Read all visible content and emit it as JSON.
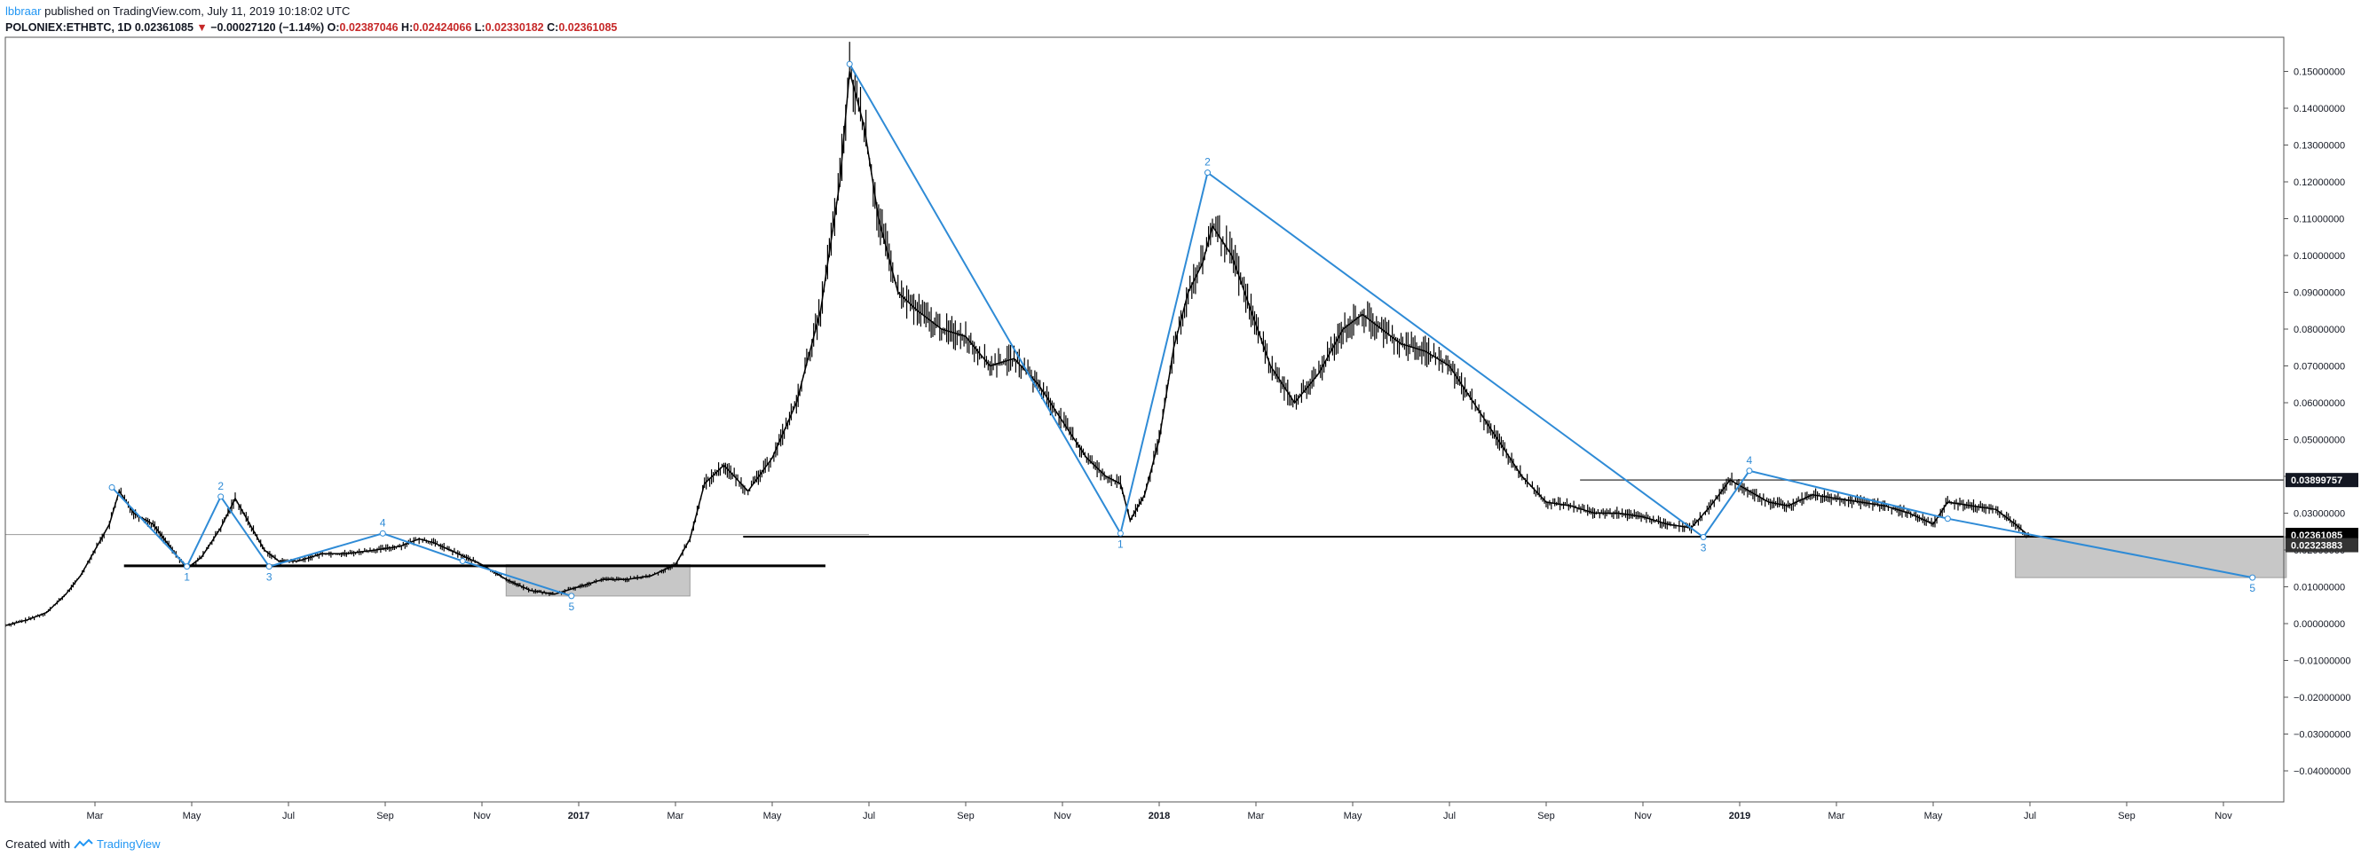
{
  "header": {
    "author": "lbbraar",
    "published": "published on TradingView.com, July 11, 2019 10:18:02 UTC",
    "symbol": "POLONIEX:ETHBTC, 1D",
    "last": "0.02361085",
    "change": "−0.00027120 (−1.14%)",
    "o_label": "O:",
    "o_value": "0.02387046",
    "h_label": "H:",
    "h_value": "0.02424066",
    "l_label": "L:",
    "l_value": "0.02330182",
    "c_label": "C:",
    "c_value": "0.02361085"
  },
  "footer": {
    "created": "Created with",
    "brand": "TradingView"
  },
  "chart_data": {
    "type": "line",
    "y_ticks": [
      "0.15000000",
      "0.14000000",
      "0.13000000",
      "0.12000000",
      "0.11000000",
      "0.10000000",
      "0.09000000",
      "0.08000000",
      "0.07000000",
      "0.06000000",
      "0.05000000",
      "0.04000000",
      "0.03000000",
      "0.02000000",
      "0.01000000",
      "0.00000000",
      "−0.01000000",
      "−0.02000000",
      "−0.03000000",
      "−0.04000000"
    ],
    "ylim": [
      -0.045,
      0.155
    ],
    "x_ticks": [
      {
        "t": 0.0,
        "label": "Mar"
      },
      {
        "t": 2.0,
        "label": "May"
      },
      {
        "t": 4.0,
        "label": "Jul"
      },
      {
        "t": 6.0,
        "label": "Sep"
      },
      {
        "t": 8.0,
        "label": "Nov"
      },
      {
        "t": 10.0,
        "label": "2017",
        "bold": true
      },
      {
        "t": 12.0,
        "label": "Mar"
      },
      {
        "t": 14.0,
        "label": "May"
      },
      {
        "t": 16.0,
        "label": "Jul"
      },
      {
        "t": 18.0,
        "label": "Sep"
      },
      {
        "t": 20.0,
        "label": "Nov"
      },
      {
        "t": 22.0,
        "label": "2018",
        "bold": true
      },
      {
        "t": 24.0,
        "label": "Mar"
      },
      {
        "t": 26.0,
        "label": "May"
      },
      {
        "t": 28.0,
        "label": "Jul"
      },
      {
        "t": 30.0,
        "label": "Sep"
      },
      {
        "t": 32.0,
        "label": "Nov"
      },
      {
        "t": 34.0,
        "label": "2019",
        "bold": true
      },
      {
        "t": 36.0,
        "label": "Mar"
      },
      {
        "t": 38.0,
        "label": "May"
      },
      {
        "t": 40.0,
        "label": "Jul"
      },
      {
        "t": 42.0,
        "label": "Sep"
      },
      {
        "t": 44.0,
        "label": "Nov"
      }
    ],
    "xlim": [
      -1.85,
      45.3
    ],
    "price_series": [
      [
        -1.85,
        -0.0005
      ],
      [
        -1.4,
        0.001
      ],
      [
        -1.0,
        0.003
      ],
      [
        -0.6,
        0.008
      ],
      [
        -0.3,
        0.013
      ],
      [
        0.0,
        0.02
      ],
      [
        0.3,
        0.027
      ],
      [
        0.5,
        0.036
      ],
      [
        0.8,
        0.03
      ],
      [
        1.2,
        0.027
      ],
      [
        1.6,
        0.02
      ],
      [
        1.9,
        0.015
      ],
      [
        2.2,
        0.018
      ],
      [
        2.6,
        0.026
      ],
      [
        2.9,
        0.034
      ],
      [
        3.2,
        0.027
      ],
      [
        3.5,
        0.02
      ],
      [
        3.8,
        0.017
      ],
      [
        4.2,
        0.017
      ],
      [
        4.7,
        0.019
      ],
      [
        5.2,
        0.019
      ],
      [
        5.8,
        0.02
      ],
      [
        6.3,
        0.021
      ],
      [
        6.7,
        0.023
      ],
      [
        7.0,
        0.022
      ],
      [
        7.5,
        0.019
      ],
      [
        8.0,
        0.016
      ],
      [
        8.5,
        0.012
      ],
      [
        9.0,
        0.009
      ],
      [
        9.5,
        0.008
      ],
      [
        10.0,
        0.01
      ],
      [
        10.5,
        0.012
      ],
      [
        11.0,
        0.012
      ],
      [
        11.5,
        0.013
      ],
      [
        12.0,
        0.016
      ],
      [
        12.3,
        0.023
      ],
      [
        12.6,
        0.038
      ],
      [
        13.0,
        0.043
      ],
      [
        13.5,
        0.036
      ],
      [
        14.0,
        0.045
      ],
      [
        14.5,
        0.06
      ],
      [
        15.0,
        0.085
      ],
      [
        15.4,
        0.12
      ],
      [
        15.6,
        0.15
      ],
      [
        15.9,
        0.135
      ],
      [
        16.2,
        0.11
      ],
      [
        16.6,
        0.09
      ],
      [
        17.0,
        0.085
      ],
      [
        17.5,
        0.08
      ],
      [
        18.0,
        0.078
      ],
      [
        18.5,
        0.07
      ],
      [
        19.0,
        0.072
      ],
      [
        19.5,
        0.065
      ],
      [
        20.0,
        0.055
      ],
      [
        20.5,
        0.045
      ],
      [
        20.9,
        0.04
      ],
      [
        21.2,
        0.038
      ],
      [
        21.4,
        0.028
      ],
      [
        21.7,
        0.035
      ],
      [
        22.0,
        0.05
      ],
      [
        22.3,
        0.075
      ],
      [
        22.6,
        0.09
      ],
      [
        22.9,
        0.098
      ],
      [
        23.1,
        0.108
      ],
      [
        23.5,
        0.1
      ],
      [
        23.9,
        0.085
      ],
      [
        24.3,
        0.07
      ],
      [
        24.8,
        0.06
      ],
      [
        25.3,
        0.068
      ],
      [
        25.8,
        0.08
      ],
      [
        26.2,
        0.084
      ],
      [
        26.6,
        0.08
      ],
      [
        27.0,
        0.076
      ],
      [
        27.5,
        0.074
      ],
      [
        28.0,
        0.07
      ],
      [
        28.5,
        0.06
      ],
      [
        29.0,
        0.05
      ],
      [
        29.5,
        0.04
      ],
      [
        30.0,
        0.033
      ],
      [
        30.5,
        0.032
      ],
      [
        31.0,
        0.03
      ],
      [
        31.5,
        0.03
      ],
      [
        32.0,
        0.029
      ],
      [
        32.5,
        0.027
      ],
      [
        33.0,
        0.026
      ],
      [
        33.4,
        0.032
      ],
      [
        33.8,
        0.039
      ],
      [
        34.2,
        0.036
      ],
      [
        34.6,
        0.033
      ],
      [
        35.0,
        0.032
      ],
      [
        35.5,
        0.035
      ],
      [
        36.0,
        0.034
      ],
      [
        36.5,
        0.033
      ],
      [
        37.0,
        0.032
      ],
      [
        37.5,
        0.03
      ],
      [
        38.0,
        0.027
      ],
      [
        38.3,
        0.033
      ],
      [
        38.8,
        0.032
      ],
      [
        39.3,
        0.031
      ],
      [
        39.7,
        0.027
      ],
      [
        40.0,
        0.0236
      ]
    ],
    "wave_lines": [
      [
        [
          0.35,
          0.037
        ],
        [
          1.9,
          0.0155
        ],
        [
          2.6,
          0.0345
        ],
        [
          3.6,
          0.0155
        ],
        [
          5.95,
          0.0245
        ],
        [
          7.6,
          0.017
        ],
        [
          9.85,
          0.0075
        ]
      ],
      [
        [
          15.6,
          0.152
        ],
        [
          21.2,
          0.0245
        ],
        [
          23.0,
          0.1225
        ],
        [
          33.25,
          0.0235
        ],
        [
          34.2,
          0.0415
        ],
        [
          38.3,
          0.0285
        ],
        [
          44.6,
          0.0125
        ]
      ]
    ],
    "wave_labels": [
      {
        "t": 1.9,
        "v": 0.0155,
        "label": "1",
        "pos": "below"
      },
      {
        "t": 2.6,
        "v": 0.0345,
        "label": "2",
        "pos": "above"
      },
      {
        "t": 3.6,
        "v": 0.0155,
        "label": "3",
        "pos": "below"
      },
      {
        "t": 5.95,
        "v": 0.0245,
        "label": "4",
        "pos": "above"
      },
      {
        "t": 9.85,
        "v": 0.0075,
        "label": "5",
        "pos": "below"
      },
      {
        "t": 21.2,
        "v": 0.0245,
        "label": "1",
        "pos": "below"
      },
      {
        "t": 23.0,
        "v": 0.1225,
        "label": "2",
        "pos": "above"
      },
      {
        "t": 33.25,
        "v": 0.0235,
        "label": "3",
        "pos": "below"
      },
      {
        "t": 34.2,
        "v": 0.0415,
        "label": "4",
        "pos": "above"
      },
      {
        "t": 44.6,
        "v": 0.0125,
        "label": "5",
        "pos": "below"
      }
    ],
    "horizontal_lines": [
      {
        "t0": -1.85,
        "t1": 16.0,
        "v": 0.0242,
        "color": "#999999",
        "width": 1
      },
      {
        "t0": 0.6,
        "t1": 15.1,
        "v": 0.0157,
        "color": "#000000",
        "width": 3
      },
      {
        "t0": 13.4,
        "t1": 45.3,
        "v": 0.02361085,
        "color": "#000000",
        "width": 2
      },
      {
        "t0": 30.7,
        "t1": 45.3,
        "v": 0.03899757,
        "color": "#555555",
        "width": 1.5
      }
    ],
    "boxes": [
      {
        "t0": 8.5,
        "t1": 12.3,
        "v0": 0.0075,
        "v1": 0.016
      },
      {
        "t0": 39.7,
        "t1": 45.3,
        "v0": 0.0125,
        "v1": 0.0236
      }
    ],
    "price_labels": [
      {
        "v": 0.03899757,
        "label": "0.03899757",
        "bg": "#131722"
      },
      {
        "v": 0.02361085,
        "label": "0.02361085",
        "bg": "#000000"
      },
      {
        "v": 0.02323883,
        "label": "0.02323883",
        "bg": "#333333"
      }
    ],
    "colors": {
      "price": "#000000",
      "wave": "#2f8bd6",
      "box": "#bdbdbd",
      "axis": "#131722"
    },
    "grid": false
  }
}
